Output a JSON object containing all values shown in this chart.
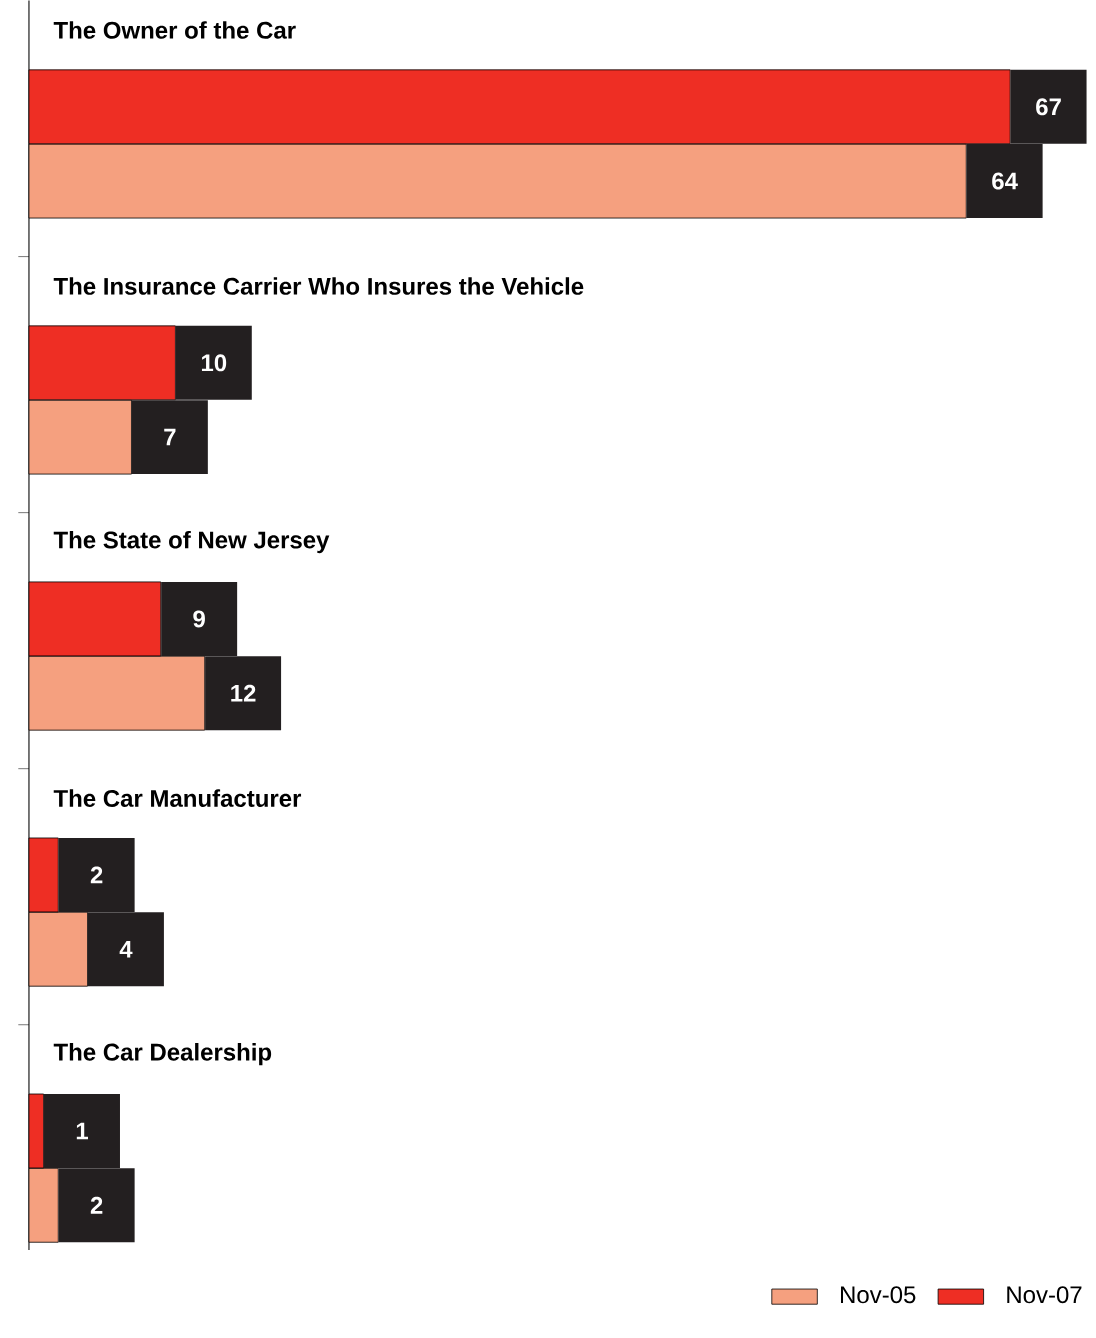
{
  "chart_data": {
    "type": "bar",
    "orientation": "horizontal",
    "categories": [
      "The Owner of the Car",
      "The Insurance Carrier Who Insures the Vehicle",
      "The State of New Jersey",
      "The Car Manufacturer",
      "The Car Dealership"
    ],
    "series": [
      {
        "name": "Nov-05",
        "color": "#f5a07f",
        "values": [
          64,
          7,
          12,
          4,
          2
        ]
      },
      {
        "name": "Nov-07",
        "color": "#ee2e24",
        "values": [
          67,
          10,
          9,
          2,
          1
        ]
      }
    ],
    "data_labels": true,
    "legend": "bottom right"
  }
}
